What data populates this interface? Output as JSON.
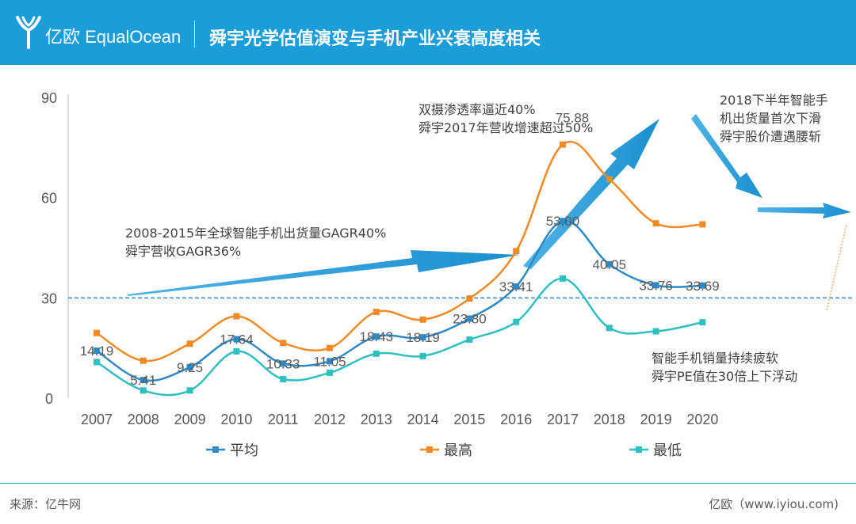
{
  "header": {
    "logo_text": "亿欧 EqualOcean",
    "title": "舜宇光学估值演变与手机产业兴衰高度相关"
  },
  "chart_data": {
    "type": "line",
    "title": "舜宇光学估值演变与手机产业兴衰高度相关",
    "categories": [
      "2007",
      "2008",
      "2009",
      "2010",
      "2011",
      "2012",
      "2013",
      "2014",
      "2015",
      "2016",
      "2017",
      "2018",
      "2019",
      "2020"
    ],
    "ylim": [
      0,
      90
    ],
    "yticks": [
      "0",
      "30",
      "60",
      "90"
    ],
    "reference_line": 30,
    "series": [
      {
        "name": "平均",
        "color": "#2e8ac6",
        "values": [
          14.19,
          5.41,
          9.25,
          17.64,
          10.33,
          11.05,
          18.43,
          18.19,
          23.8,
          33.41,
          53.0,
          40.05,
          33.76,
          33.69
        ]
      },
      {
        "name": "最高",
        "color": "#f08a24",
        "values": [
          19.5,
          11.2,
          16.3,
          24.5,
          16.5,
          15.0,
          25.8,
          23.5,
          29.8,
          44.0,
          75.88,
          65.5,
          52.3,
          52.0
        ]
      },
      {
        "name": "最低",
        "color": "#2fbfbf",
        "values": [
          10.8,
          2.3,
          2.3,
          14.0,
          5.7,
          7.6,
          13.3,
          12.6,
          17.5,
          22.8,
          35.8,
          21.0,
          20.0,
          22.7
        ]
      }
    ],
    "data_labels": [
      "14.19",
      "5.41",
      "9.25",
      "17.64",
      "10.33",
      "11.05",
      "18.43",
      "18.19",
      "23.80",
      "33.41",
      "53.00",
      "40.05",
      "33.76",
      "33.69"
    ],
    "max_label": "75.88",
    "annotations": [
      [
        "2008-2015年全球智能手机出货量GAGR40%",
        "舜宇营收GAGR36%"
      ],
      [
        "双摄渗透率逼近40%",
        "舜宇2017年营收增速超过50%"
      ],
      [
        "2018下半年智能手",
        "机出货量首次下滑",
        "舜宇股价遭遇腰斩"
      ],
      [
        "智能手机销量持续疲软",
        "舜宇PE值在30倍上下浮动"
      ]
    ]
  },
  "footer": {
    "source": "来源：亿牛网",
    "brand": "亿欧（www.iyiou.com)"
  }
}
